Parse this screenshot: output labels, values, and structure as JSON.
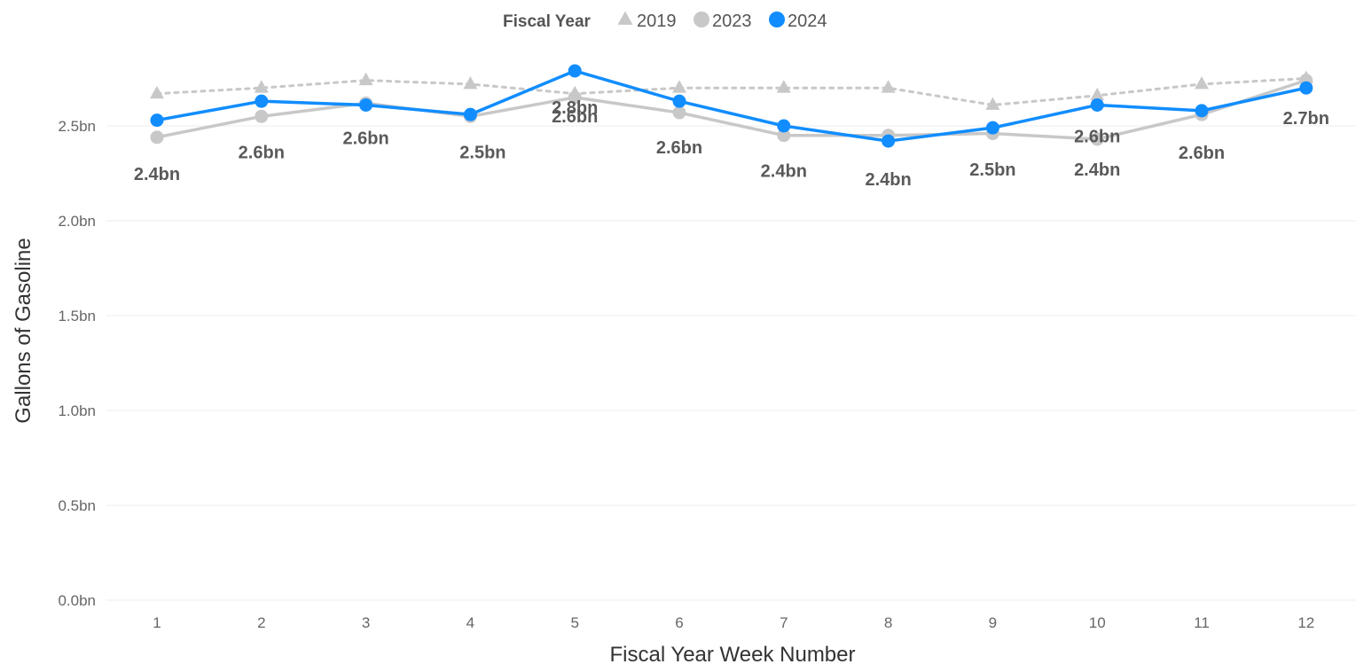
{
  "chart_data": {
    "type": "line",
    "xlabel": "Fiscal Year Week Number",
    "ylabel": "Gallons of Gasoline",
    "x": [
      1,
      2,
      3,
      4,
      5,
      6,
      7,
      8,
      9,
      10,
      11,
      12
    ],
    "ylim": [
      0,
      2.9
    ],
    "yticks": [
      0,
      0.5,
      1.0,
      1.5,
      2.0,
      2.5
    ],
    "ytick_labels": [
      "0.0bn",
      "0.5bn",
      "1.0bn",
      "1.5bn",
      "2.0bn",
      "2.5bn"
    ],
    "grid": true,
    "legend": {
      "title": "Fiscal Year",
      "position": "top-center"
    },
    "series": [
      {
        "name": "2019",
        "color": "#c8c8c8",
        "marker": "triangle",
        "line_style": "dotted",
        "values": [
          2.67,
          2.7,
          2.74,
          2.72,
          2.67,
          2.7,
          2.7,
          2.7,
          2.61,
          2.66,
          2.72,
          2.75
        ]
      },
      {
        "name": "2023",
        "color": "#c8c8c8",
        "marker": "circle",
        "line_style": "solid",
        "values": [
          2.44,
          2.55,
          2.62,
          2.55,
          2.65,
          2.57,
          2.45,
          2.45,
          2.46,
          2.43,
          2.56,
          2.74
        ]
      },
      {
        "name": "2024",
        "color": "#118dff",
        "marker": "circle",
        "line_style": "solid",
        "values": [
          2.53,
          2.63,
          2.61,
          2.56,
          2.79,
          2.63,
          2.5,
          2.42,
          2.49,
          2.61,
          2.58,
          2.7
        ]
      }
    ],
    "data_labels": [
      {
        "text": "2.4bn",
        "week": 1,
        "value": 2.44
      },
      {
        "text": "2.6bn",
        "week": 2,
        "value": 2.55
      },
      {
        "text": "2.6bn",
        "week": 3,
        "value": 2.62
      },
      {
        "text": "2.5bn",
        "week": 4,
        "value": 2.55
      },
      {
        "text": "2.8bn",
        "week": 5,
        "value": 2.79
      },
      {
        "text": "2.6bn",
        "week": 5,
        "value": 2.65
      },
      {
        "text": "2.6bn",
        "week": 6,
        "value": 2.57
      },
      {
        "text": "2.4bn",
        "week": 7,
        "value": 2.45
      },
      {
        "text": "2.4bn",
        "week": 8,
        "value": 2.42
      },
      {
        "text": "2.5bn",
        "week": 9,
        "value": 2.49
      },
      {
        "text": "2.6bn",
        "week": 10,
        "value": 2.61
      },
      {
        "text": "2.4bn",
        "week": 10,
        "value": 2.43
      },
      {
        "text": "2.6bn",
        "week": 11,
        "value": 2.56
      },
      {
        "text": "2.7bn",
        "week": 12,
        "value": 2.7
      }
    ]
  }
}
